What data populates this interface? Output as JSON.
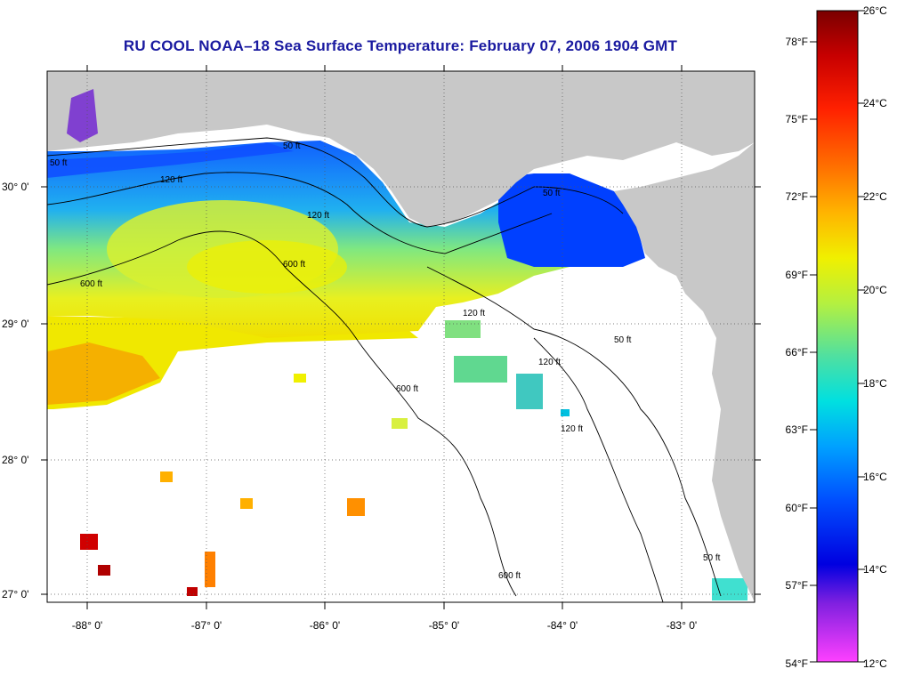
{
  "title": "RU COOL  NOAA–18  Sea Surface Temperature:  February 07, 2006 1904 GMT",
  "axes": {
    "lon_labels": [
      "-88° 0'",
      "-87° 0'",
      "-86° 0'",
      "-85° 0'",
      "-84° 0'",
      "-83° 0'"
    ],
    "lat_labels": [
      "30° 0'",
      "29° 0'",
      "28° 0'",
      "27° 0'"
    ]
  },
  "colorbar": {
    "fahrenheit_labels": [
      "78°F",
      "75°F",
      "72°F",
      "69°F",
      "66°F",
      "63°F",
      "60°F",
      "57°F",
      "54°F"
    ],
    "celsius_labels": [
      "26°C",
      "24°C",
      "22°C",
      "20°C",
      "18°C",
      "16°C",
      "14°C",
      "12°C"
    ],
    "colors": [
      "#7a0000",
      "#c80000",
      "#ff2000",
      "#ff7000",
      "#ffb400",
      "#f0f000",
      "#b4f040",
      "#50e0a0",
      "#00e0e0",
      "#00a0ff",
      "#0050ff",
      "#0000e0",
      "#8020e0",
      "#ff40ff"
    ]
  },
  "contours": {
    "labels": [
      "50 ft",
      "120 ft",
      "600 ft",
      "50 ft",
      "120 ft",
      "600 ft",
      "120 ft",
      "600 ft",
      "50 ft",
      "120 ft",
      "50 ft",
      "120 ft",
      "600 ft",
      "50 ft"
    ]
  },
  "colors": {
    "land": "#c8c8c8",
    "title": "#1a1aa0",
    "nodata": "#ffffff"
  }
}
